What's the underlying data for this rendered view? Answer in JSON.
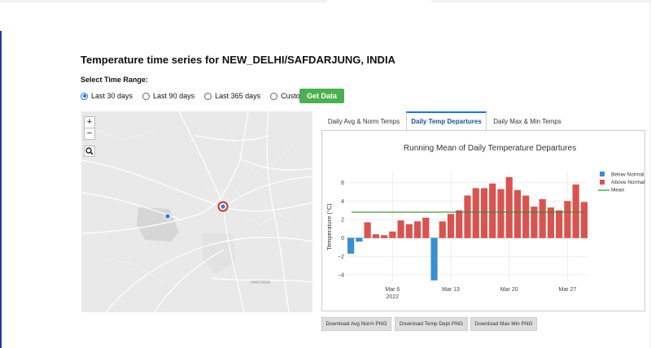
{
  "page": {
    "title": "Temperature time series for NEW_DELHI/SAFDARJUNG, INDIA",
    "range_label": "Select Time Range:"
  },
  "time_range": {
    "options": [
      "Last 30 days",
      "Last 90 days",
      "Last 365 days",
      "Custom"
    ],
    "selected": "Last 30 days",
    "button_label": "Get Data"
  },
  "map": {
    "zoom_in": "+",
    "zoom_out": "−",
    "region_label": "HARYANA",
    "colors": {
      "station_marker": "#c0392b",
      "nearby_point": "#3a7bd5",
      "land": "#e9e9e9"
    }
  },
  "tabs": [
    {
      "label": "Daily Avg & Norm Temps",
      "active": false
    },
    {
      "label": "Daily Temp Departures",
      "active": true
    },
    {
      "label": "Daily Max & Min Temps",
      "active": false
    }
  ],
  "downloads": [
    "Download Avg Norm PNG",
    "Download Temp Dept PNG",
    "Download Max Min PNG"
  ],
  "chart_data": {
    "type": "bar",
    "title": "Running Mean of Daily Temperature Departures",
    "xlabel": "",
    "ylabel": "Temperature (°C)",
    "x_tick_labels": [
      "Mar 6\n2022",
      "Mar 13",
      "Mar 20",
      "Mar 27"
    ],
    "x_tick_dates": [
      "2022-03-06",
      "2022-03-13",
      "2022-03-20",
      "2022-03-27"
    ],
    "y_ticks": [
      -4,
      -2,
      0,
      2,
      4,
      6
    ],
    "ylim": [
      -4.7,
      7.2
    ],
    "dates": [
      "2022-03-01",
      "2022-03-02",
      "2022-03-03",
      "2022-03-04",
      "2022-03-05",
      "2022-03-06",
      "2022-03-07",
      "2022-03-08",
      "2022-03-09",
      "2022-03-10",
      "2022-03-11",
      "2022-03-12",
      "2022-03-13",
      "2022-03-14",
      "2022-03-15",
      "2022-03-16",
      "2022-03-17",
      "2022-03-18",
      "2022-03-19",
      "2022-03-20",
      "2022-03-21",
      "2022-03-22",
      "2022-03-23",
      "2022-03-24",
      "2022-03-25",
      "2022-03-26",
      "2022-03-27",
      "2022-03-28",
      "2022-03-29"
    ],
    "values": [
      -1.7,
      -0.4,
      1.7,
      0.4,
      0.3,
      0.7,
      1.9,
      1.5,
      1.8,
      2.2,
      -4.6,
      1.8,
      2.6,
      3.0,
      4.6,
      5.4,
      5.4,
      5.9,
      5.3,
      6.6,
      5.2,
      4.6,
      3.4,
      4.2,
      3.3,
      3.0,
      4.0,
      5.8,
      3.9
    ],
    "mean": 2.8,
    "legend": {
      "placement": "top-right",
      "entries": [
        "Below Normal",
        "Above Normal",
        "Mean"
      ]
    },
    "colors": {
      "below": "#3a8fd1",
      "above": "#d9534f",
      "mean": "#2e8b2e"
    },
    "grid": true
  }
}
